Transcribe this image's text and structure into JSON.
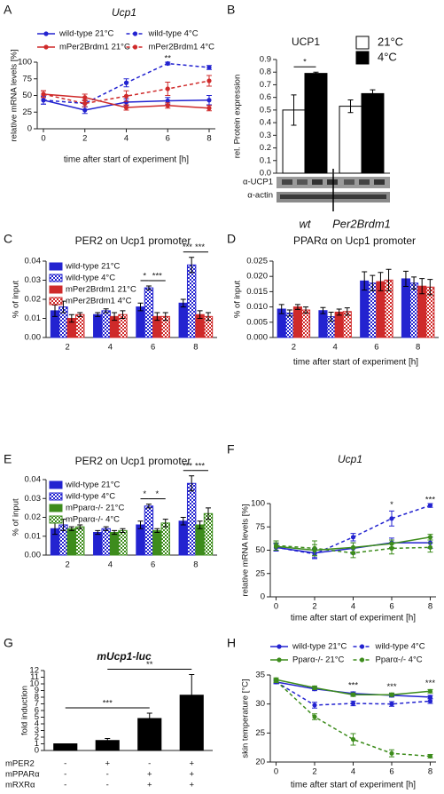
{
  "chart_data": [
    {
      "panel": "A",
      "type": "line",
      "title": "Ucp1",
      "xlabel": "time after start of experiment [h]",
      "ylabel": "relative mRNA levels [%]",
      "x": [
        0,
        2,
        4,
        6,
        8
      ],
      "xlim": [
        -0.3,
        8.3
      ],
      "xticks": [
        0,
        2,
        4,
        6,
        8
      ],
      "ylim": [
        0,
        100
      ],
      "yticks": [
        0,
        25,
        50,
        75,
        100
      ],
      "legend": "top",
      "series": [
        {
          "name": "wild-type 21°C",
          "color": "#2323d0",
          "dashed": false,
          "values": [
            43,
            28,
            40,
            42,
            43
          ],
          "errors": [
            6,
            5,
            5,
            5,
            7
          ]
        },
        {
          "name": "wild-type 4°C",
          "color": "#2323d0",
          "dashed": true,
          "values": [
            43,
            38,
            69,
            98,
            92
          ],
          "errors": [
            6,
            5,
            6,
            2,
            3
          ]
        },
        {
          "name": "mPer2Brdm1 21°C",
          "color": "#cf2a2a",
          "dashed": false,
          "values": [
            52,
            47,
            32,
            35,
            31
          ],
          "errors": [
            5,
            5,
            4,
            4,
            4
          ]
        },
        {
          "name": "mPer2Brdm1 4°C",
          "color": "#cf2a2a",
          "dashed": true,
          "values": [
            52,
            38,
            49,
            60,
            72
          ],
          "errors": [
            5,
            5,
            8,
            10,
            8
          ]
        }
      ],
      "annotations": [
        {
          "label": "**",
          "x": 6
        }
      ]
    },
    {
      "panel": "B",
      "type": "grouped-bar",
      "title": "UCP1",
      "ylabel": "rel. Protein expression",
      "categories": [
        "wt",
        "Per2Brdm1"
      ],
      "ylim": [
        0,
        0.9
      ],
      "yticks": [
        {
          "value": 0,
          "label": "0.0"
        },
        0.1,
        0.2,
        0.3,
        0.4,
        0.5,
        0.6,
        0.7,
        0.8,
        0.9
      ],
      "legend": "upper-right",
      "blot_labels": [
        "α-UCP1",
        "α-actin"
      ],
      "series": [
        {
          "name": "21°C",
          "color": "#ffffff",
          "values": [
            0.5,
            0.53
          ],
          "errors": [
            0.12,
            0.05
          ]
        },
        {
          "name": "4°C",
          "color": "#000000",
          "values": [
            0.79,
            0.63
          ],
          "errors": [
            0.01,
            0.03
          ]
        }
      ],
      "annotations": [
        {
          "label": "*",
          "between": [
            [
              0,
              0
            ],
            [
              0,
              1
            ]
          ]
        }
      ]
    },
    {
      "panel": "C",
      "type": "grouped-bar",
      "title": "PER2 on Ucp1 promoter",
      "ylabel": "% of input",
      "categories": [
        "2",
        "4",
        "6",
        "8"
      ],
      "ylim": [
        0,
        0.04
      ],
      "yticks": [
        {
          "value": 0,
          "label": "0.00"
        },
        0.01,
        0.02,
        0.03,
        0.04
      ],
      "legend": "upper-left",
      "series": [
        {
          "name": "wild-type 21°C",
          "color": "#2323d0",
          "pattern": "solid",
          "values": [
            0.014,
            0.012,
            0.016,
            0.018
          ],
          "errors": [
            0.003,
            0.001,
            0.002,
            0.002
          ]
        },
        {
          "name": "wild-type 4°C",
          "color": "#2323d0",
          "pattern": "check",
          "values": [
            0.016,
            0.014,
            0.026,
            0.038
          ],
          "errors": [
            0.003,
            0.001,
            0.001,
            0.004
          ]
        },
        {
          "name": "mPer2Brdm1 21°C",
          "color": "#cf2a2a",
          "pattern": "solid",
          "values": [
            0.01,
            0.011,
            0.011,
            0.012
          ],
          "errors": [
            0.002,
            0.002,
            0.002,
            0.002
          ]
        },
        {
          "name": "mPer2Brdm1 4°C",
          "color": "#cf2a2a",
          "pattern": "check",
          "values": [
            0.012,
            0.012,
            0.011,
            0.011
          ],
          "errors": [
            0.001,
            0.002,
            0.002,
            0.002
          ]
        }
      ],
      "annotations": [
        {
          "label": "*",
          "between": [
            [
              2,
              0
            ],
            [
              2,
              1
            ]
          ]
        },
        {
          "label": "***",
          "between": [
            [
              2,
              1
            ],
            [
              2,
              3
            ]
          ]
        },
        {
          "label": "***",
          "between": [
            [
              3,
              0
            ],
            [
              3,
              1
            ]
          ]
        },
        {
          "label": "***",
          "between": [
            [
              3,
              1
            ],
            [
              3,
              3
            ]
          ]
        }
      ]
    },
    {
      "panel": "D",
      "type": "grouped-bar",
      "title": "PPARα on Ucp1 promoter",
      "ylabel": "% of input",
      "xlabel": "time after start of experiment [h]",
      "categories": [
        "2",
        "4",
        "6",
        "8"
      ],
      "ylim": [
        0,
        0.025
      ],
      "yticks": [
        {
          "value": 0,
          "label": "0.000"
        },
        0.005,
        {
          "value": 0.01,
          "label": "0.010"
        },
        0.015,
        {
          "value": 0.02,
          "label": "0.020"
        },
        0.025
      ],
      "series": [
        {
          "color": "#2323d0",
          "pattern": "solid",
          "values": [
            0.0093,
            0.0088,
            0.0185,
            0.0192
          ],
          "errors": [
            0.0015,
            0.001,
            0.003,
            0.0025
          ]
        },
        {
          "color": "#2323d0",
          "pattern": "check",
          "values": [
            0.008,
            0.0068,
            0.0178,
            0.0178
          ],
          "errors": [
            0.001,
            0.0015,
            0.0025,
            0.002
          ]
        },
        {
          "color": "#cf2a2a",
          "pattern": "solid",
          "values": [
            0.01,
            0.0083,
            0.0183,
            0.0168
          ],
          "errors": [
            0.0008,
            0.001,
            0.003,
            0.0025
          ]
        },
        {
          "color": "#cf2a2a",
          "pattern": "check",
          "values": [
            0.009,
            0.0085,
            0.0188,
            0.0165
          ],
          "errors": [
            0.001,
            0.0012,
            0.0035,
            0.0025
          ]
        }
      ]
    },
    {
      "panel": "E",
      "type": "grouped-bar",
      "title": "PER2 on Ucp1 promoter",
      "ylabel": "% of input",
      "categories": [
        "2",
        "4",
        "6",
        "8"
      ],
      "ylim": [
        0,
        0.04
      ],
      "yticks": [
        {
          "value": 0,
          "label": "0.00"
        },
        0.01,
        0.02,
        0.03,
        0.04
      ],
      "legend": "upper-left",
      "series": [
        {
          "name": "wild-type 21°C",
          "color": "#2323d0",
          "pattern": "solid",
          "values": [
            0.014,
            0.012,
            0.016,
            0.018
          ],
          "errors": [
            0.003,
            0.001,
            0.002,
            0.002
          ]
        },
        {
          "name": "wild-type 4°C",
          "color": "#2323d0",
          "pattern": "check",
          "values": [
            0.016,
            0.014,
            0.026,
            0.038
          ],
          "errors": [
            0.003,
            0.001,
            0.001,
            0.004
          ]
        },
        {
          "name": "mPparα-/- 21°C",
          "color": "#3d8c1c",
          "pattern": "solid",
          "values": [
            0.014,
            0.012,
            0.013,
            0.016
          ],
          "errors": [
            0.001,
            0.001,
            0.001,
            0.002
          ]
        },
        {
          "name": "mPparα-/- 4°C",
          "color": "#3d8c1c",
          "pattern": "check",
          "values": [
            0.015,
            0.013,
            0.017,
            0.022
          ],
          "errors": [
            0.001,
            0.001,
            0.002,
            0.003
          ]
        }
      ],
      "annotations": [
        {
          "label": "*",
          "between": [
            [
              2,
              0
            ],
            [
              2,
              1
            ]
          ]
        },
        {
          "label": "*",
          "between": [
            [
              2,
              1
            ],
            [
              2,
              3
            ]
          ]
        },
        {
          "label": "***",
          "between": [
            [
              3,
              0
            ],
            [
              3,
              1
            ]
          ]
        },
        {
          "label": "***",
          "between": [
            [
              3,
              1
            ],
            [
              3,
              3
            ]
          ]
        }
      ]
    },
    {
      "panel": "F",
      "type": "line",
      "title": "Ucp1",
      "xlabel": "time after start of experiment [h]",
      "ylabel": "relative mRNA levels [%]",
      "x": [
        0,
        2,
        4,
        6,
        8
      ],
      "xlim": [
        -0.3,
        8.3
      ],
      "xticks": [
        0,
        2,
        4,
        6,
        8
      ],
      "ylim": [
        0,
        100
      ],
      "yticks": [
        0,
        25,
        50,
        75,
        100
      ],
      "series": [
        {
          "color": "#2323d0",
          "dashed": false,
          "values": [
            53,
            47,
            52,
            58,
            58
          ],
          "errors": [
            4,
            5,
            6,
            5,
            6
          ]
        },
        {
          "color": "#2323d0",
          "dashed": true,
          "values": [
            53,
            46,
            64,
            84,
            98
          ],
          "errors": [
            4,
            5,
            4,
            8,
            2
          ]
        },
        {
          "color": "#3d8c1c",
          "dashed": false,
          "values": [
            54,
            50,
            53,
            57,
            64
          ],
          "errors": [
            4,
            6,
            5,
            4,
            3
          ]
        },
        {
          "color": "#3d8c1c",
          "dashed": true,
          "values": [
            55,
            52,
            47,
            52,
            53
          ],
          "errors": [
            5,
            8,
            5,
            6,
            5
          ]
        }
      ],
      "annotations": [
        {
          "label": "*",
          "x": 6
        },
        {
          "label": "***",
          "x": 8
        }
      ]
    },
    {
      "panel": "G",
      "type": "bar",
      "title": "mUcp1-luc",
      "ylabel": "fold induction",
      "values": [
        1,
        1.5,
        4.8,
        8.3
      ],
      "errors": [
        0,
        0.3,
        0.8,
        3.1
      ],
      "color": "#000000",
      "ylim": [
        0,
        12
      ],
      "yticks": [
        0,
        1,
        2,
        3,
        4,
        5,
        6,
        7,
        8,
        9,
        10,
        11,
        12
      ],
      "conditions": [
        {
          "label": "mPER2",
          "marks": [
            "-",
            "+",
            "-",
            "+"
          ]
        },
        {
          "label": "mPPARα",
          "marks": [
            "-",
            "-",
            "+",
            "+"
          ]
        },
        {
          "label": "mRXRα",
          "marks": [
            "-",
            "-",
            "+",
            "+"
          ]
        }
      ],
      "annotations": [
        {
          "label": "***",
          "between": [
            0,
            2
          ]
        },
        {
          "label": "**",
          "between": [
            1,
            3
          ]
        }
      ]
    },
    {
      "panel": "H",
      "type": "line",
      "xlabel": "time after start of experiment [h]",
      "ylabel": "skin temperature [°C]",
      "x": [
        0,
        2,
        4,
        6,
        8
      ],
      "xlim": [
        -0.3,
        8.3
      ],
      "xticks": [
        0,
        2,
        4,
        6,
        8
      ],
      "ylim": [
        20,
        35
      ],
      "yticks": [
        20,
        25,
        30,
        35
      ],
      "legend": "top",
      "series": [
        {
          "name": "wild-type 21°C",
          "color": "#2323d0",
          "dashed": false,
          "values": [
            33.8,
            32.6,
            31.8,
            31.5,
            31.2
          ],
          "errors": [
            0.3,
            0.3,
            0.3,
            0.3,
            0.3
          ]
        },
        {
          "name": "wild-type 4°C",
          "color": "#2323d0",
          "dashed": true,
          "values": [
            33.8,
            29.8,
            30.1,
            30.0,
            30.5
          ],
          "errors": [
            0.3,
            0.5,
            0.4,
            0.4,
            0.4
          ]
        },
        {
          "name": "Pparα-/- 21°C",
          "color": "#3d8c1c",
          "dashed": false,
          "values": [
            34.2,
            32.8,
            31.6,
            31.6,
            32.2
          ],
          "errors": [
            0.3,
            0.3,
            0.3,
            0.3,
            0.3
          ]
        },
        {
          "name": "Pparα-/- 4°C",
          "color": "#3d8c1c",
          "dashed": true,
          "values": [
            34.0,
            27.8,
            23.9,
            21.5,
            21.0
          ],
          "errors": [
            0.3,
            0.5,
            1.0,
            0.6,
            0.3
          ]
        }
      ],
      "annotations": [
        {
          "label": "***",
          "x": 4
        },
        {
          "label": "***",
          "x": 6
        },
        {
          "label": "***",
          "x": 8
        }
      ]
    }
  ]
}
